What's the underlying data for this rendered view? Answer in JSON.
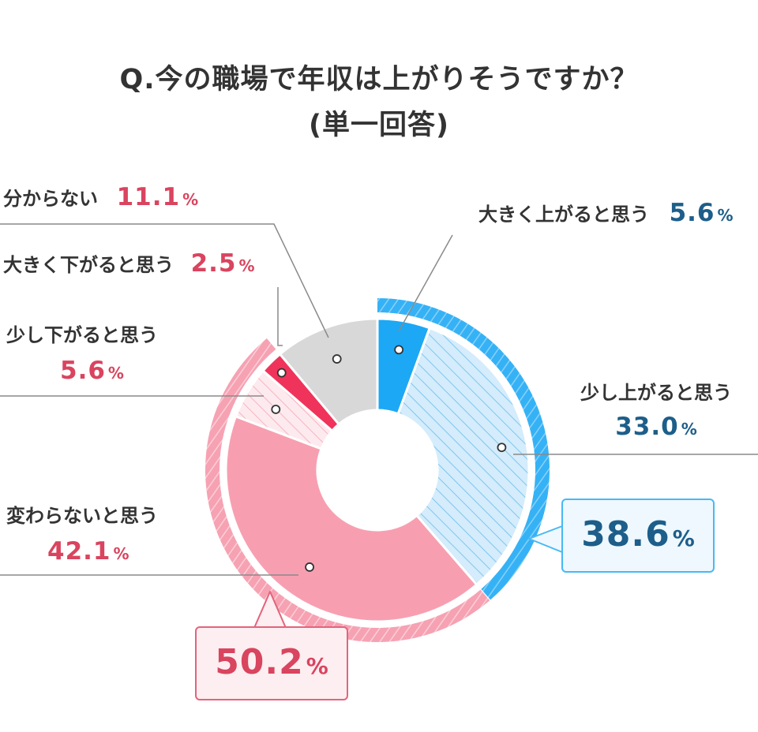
{
  "title": {
    "line1": "Q.今の職場で年収は上がりそうですか？",
    "line2": "(単一回答)"
  },
  "chart_data": {
    "type": "pie",
    "title": "Q.今の職場で年収は上がりそうですか？ (単一回答)",
    "unit": "%",
    "slices": [
      {
        "label": "大きく上がると思う",
        "value": 5.6,
        "color": "#1ca8f5"
      },
      {
        "label": "少し上がると思う",
        "value": 33.0,
        "color": "#cfeafb"
      },
      {
        "label": "変わらないと思う",
        "value": 42.1,
        "color": "#f79fb0"
      },
      {
        "label": "少し下がると思う",
        "value": 5.6,
        "color": "#fde4e9"
      },
      {
        "label": "大きく下がると思う",
        "value": 2.5,
        "color": "#f0335a"
      },
      {
        "label": "分からない",
        "value": 11.1,
        "color": "#d8d8d8"
      }
    ],
    "groups": [
      {
        "value": 38.6,
        "color": "#36b4f5"
      },
      {
        "value": 50.2,
        "color": "#f79fb0"
      }
    ]
  },
  "labels": {
    "s0": {
      "name": "大きく上がると思う",
      "value": "5.6",
      "unit": "%"
    },
    "s1": {
      "name": "少し上がると思う",
      "value": "33.0",
      "unit": "%"
    },
    "s2": {
      "name": "変わらないと思う",
      "value": "42.1",
      "unit": "%"
    },
    "s3": {
      "name": "少し下がると思う",
      "value": "5.6",
      "unit": "%"
    },
    "s4": {
      "name": "大きく下がると思う",
      "value": "2.5",
      "unit": "%"
    },
    "s5": {
      "name": "分からない",
      "value": "11.1",
      "unit": "%"
    },
    "g_up": {
      "value": "38.6",
      "unit": "%"
    },
    "g_down": {
      "value": "50.2",
      "unit": "%"
    }
  }
}
